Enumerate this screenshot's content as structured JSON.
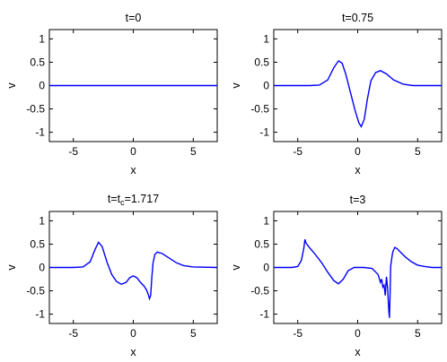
{
  "chart_data": [
    {
      "type": "line",
      "title": "t=0",
      "title_main": "t=t",
      "title_sub": "",
      "title_tail": "",
      "xlabel": "x",
      "ylabel": "v",
      "xlim": [
        -7,
        7
      ],
      "ylim": [
        -1.2,
        1.2
      ],
      "xticks": [
        -5,
        0,
        5
      ],
      "yticks": [
        -1,
        -0.5,
        0,
        0.5,
        1
      ],
      "line_color": "#0000ff",
      "grid": false,
      "x": [
        -7,
        -5,
        -3,
        -1,
        0,
        1,
        3,
        5,
        7
      ],
      "y": [
        0,
        0,
        0,
        0,
        0,
        0,
        0,
        0,
        0
      ]
    },
    {
      "type": "line",
      "title": "t=0.75",
      "xlabel": "x",
      "ylabel": "v",
      "xlim": [
        -7,
        7
      ],
      "ylim": [
        -1.2,
        1.2
      ],
      "xticks": [
        -5,
        0,
        5
      ],
      "yticks": [
        -1,
        -0.5,
        0,
        0.5,
        1
      ],
      "line_color": "#0000ff",
      "grid": false,
      "x": [
        -7,
        -4,
        -3.2,
        -2.5,
        -2.0,
        -1.6,
        -1.3,
        -1.0,
        -0.6,
        -0.2,
        0.1,
        0.3,
        0.55,
        0.8,
        1.1,
        1.5,
        1.9,
        2.4,
        3.0,
        3.8,
        4.6,
        7
      ],
      "y": [
        0,
        0,
        0.01,
        0.12,
        0.38,
        0.53,
        0.48,
        0.25,
        -0.15,
        -0.55,
        -0.8,
        -0.88,
        -0.72,
        -0.3,
        0.1,
        0.28,
        0.32,
        0.25,
        0.12,
        0.03,
        0,
        0
      ]
    },
    {
      "type": "line",
      "title": "t=t_c=1.717",
      "title_main": "t=t",
      "title_sub": "c",
      "title_tail": "=1.717",
      "xlabel": "x",
      "ylabel": "v",
      "xlim": [
        -7,
        7
      ],
      "ylim": [
        -1.2,
        1.2
      ],
      "xticks": [
        -5,
        0,
        5
      ],
      "yticks": [
        -1,
        -0.5,
        0,
        0.5,
        1
      ],
      "line_color": "#0000ff",
      "grid": false,
      "x": [
        -7,
        -5,
        -4.2,
        -3.6,
        -3.2,
        -2.9,
        -2.6,
        -2.2,
        -1.8,
        -1.4,
        -1.0,
        -0.6,
        -0.3,
        0.0,
        0.3,
        0.6,
        0.9,
        1.1,
        1.25,
        1.35,
        1.45,
        1.55,
        1.65,
        1.8,
        2.0,
        2.4,
        3.0,
        3.6,
        4.2,
        5.0,
        7
      ],
      "y": [
        0,
        0,
        0.01,
        0.12,
        0.38,
        0.54,
        0.45,
        0.12,
        -0.15,
        -0.3,
        -0.36,
        -0.32,
        -0.22,
        -0.18,
        -0.22,
        -0.32,
        -0.4,
        -0.48,
        -0.58,
        -0.67,
        -0.6,
        -0.2,
        0.1,
        0.28,
        0.33,
        0.3,
        0.2,
        0.1,
        0.04,
        0.01,
        0
      ]
    },
    {
      "type": "line",
      "title": "t=3",
      "xlabel": "x",
      "ylabel": "v",
      "xlim": [
        -7,
        7
      ],
      "ylim": [
        -1.2,
        1.2
      ],
      "xticks": [
        -5,
        0,
        5
      ],
      "yticks": [
        -1,
        -0.5,
        0,
        0.5,
        1
      ],
      "line_color": "#0000ff",
      "grid": false,
      "x": [
        -7,
        -5.5,
        -5.0,
        -4.7,
        -4.5,
        -4.4,
        -4.3,
        -4.1,
        -3.6,
        -3.0,
        -2.5,
        -2.0,
        -1.6,
        -1.2,
        -0.8,
        -0.3,
        0.5,
        1.2,
        1.7,
        1.9,
        2.0,
        2.1,
        2.2,
        2.3,
        2.4,
        2.5,
        2.6,
        2.65,
        2.7,
        2.75,
        2.8,
        2.9,
        3.0,
        3.1,
        3.3,
        3.6,
        4.0,
        4.5,
        5.0,
        5.6,
        6.2,
        7
      ],
      "y": [
        0,
        0,
        0.02,
        0.15,
        0.4,
        0.6,
        0.52,
        0.45,
        0.3,
        0.1,
        -0.1,
        -0.28,
        -0.35,
        -0.25,
        -0.07,
        0,
        0,
        -0.02,
        -0.15,
        -0.32,
        -0.25,
        -0.42,
        -0.38,
        -0.6,
        -0.2,
        -0.45,
        -0.95,
        -1.08,
        -0.6,
        0.02,
        0.12,
        0.3,
        0.38,
        0.43,
        0.4,
        0.32,
        0.22,
        0.12,
        0.05,
        0.02,
        0,
        0
      ]
    }
  ]
}
